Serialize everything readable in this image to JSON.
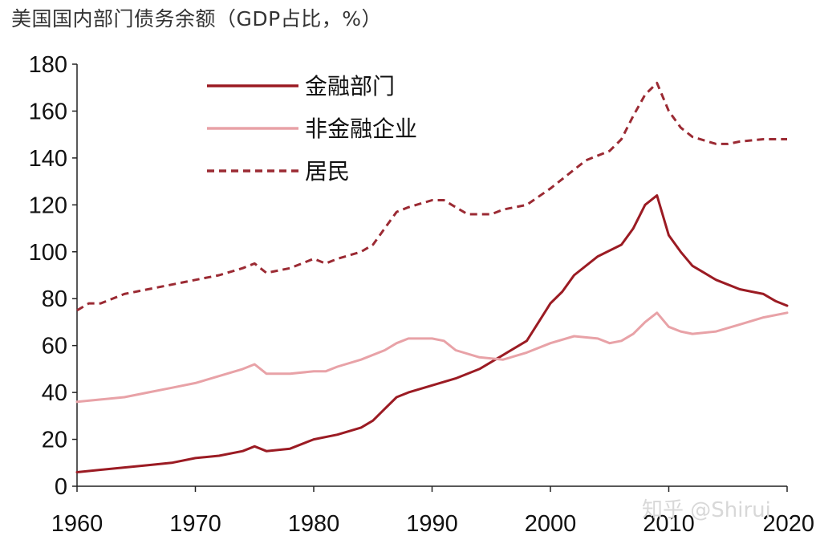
{
  "chart_data": {
    "type": "line",
    "title": "美国国内部门债务余额（GDP占比，%）",
    "xlabel": "",
    "ylabel": "",
    "xlim": [
      1960,
      2020
    ],
    "ylim": [
      0,
      180
    ],
    "x_ticks": [
      "1960",
      "1970",
      "1980",
      "1990",
      "2000",
      "2010",
      "2020"
    ],
    "y_ticks": [
      "0",
      "20",
      "40",
      "60",
      "80",
      "100",
      "120",
      "140",
      "160",
      "180"
    ],
    "grid": false,
    "legend_position": "top-left",
    "series": [
      {
        "name": "金融部门",
        "color": "#9b1b23",
        "style": "solid",
        "points": [
          [
            1960,
            6
          ],
          [
            1962,
            7
          ],
          [
            1964,
            8
          ],
          [
            1966,
            9
          ],
          [
            1968,
            10
          ],
          [
            1970,
            12
          ],
          [
            1972,
            13
          ],
          [
            1974,
            15
          ],
          [
            1975,
            17
          ],
          [
            1976,
            15
          ],
          [
            1978,
            16
          ],
          [
            1980,
            20
          ],
          [
            1982,
            22
          ],
          [
            1984,
            25
          ],
          [
            1985,
            28
          ],
          [
            1986,
            33
          ],
          [
            1987,
            38
          ],
          [
            1988,
            40
          ],
          [
            1990,
            43
          ],
          [
            1992,
            46
          ],
          [
            1994,
            50
          ],
          [
            1996,
            56
          ],
          [
            1998,
            62
          ],
          [
            1999,
            70
          ],
          [
            2000,
            78
          ],
          [
            2001,
            83
          ],
          [
            2002,
            90
          ],
          [
            2004,
            98
          ],
          [
            2006,
            103
          ],
          [
            2007,
            110
          ],
          [
            2008,
            120
          ],
          [
            2009,
            124
          ],
          [
            2010,
            107
          ],
          [
            2011,
            100
          ],
          [
            2012,
            94
          ],
          [
            2013,
            91
          ],
          [
            2014,
            88
          ],
          [
            2015,
            86
          ],
          [
            2016,
            84
          ],
          [
            2017,
            83
          ],
          [
            2018,
            82
          ],
          [
            2019,
            79
          ],
          [
            2020,
            77
          ]
        ]
      },
      {
        "name": "非金融企业",
        "color": "#e8a2a7",
        "style": "solid",
        "points": [
          [
            1960,
            36
          ],
          [
            1962,
            37
          ],
          [
            1964,
            38
          ],
          [
            1966,
            40
          ],
          [
            1968,
            42
          ],
          [
            1970,
            44
          ],
          [
            1972,
            47
          ],
          [
            1974,
            50
          ],
          [
            1975,
            52
          ],
          [
            1976,
            48
          ],
          [
            1978,
            48
          ],
          [
            1980,
            49
          ],
          [
            1981,
            49
          ],
          [
            1982,
            51
          ],
          [
            1984,
            54
          ],
          [
            1986,
            58
          ],
          [
            1987,
            61
          ],
          [
            1988,
            63
          ],
          [
            1990,
            63
          ],
          [
            1991,
            62
          ],
          [
            1992,
            58
          ],
          [
            1994,
            55
          ],
          [
            1996,
            54
          ],
          [
            1998,
            57
          ],
          [
            2000,
            61
          ],
          [
            2002,
            64
          ],
          [
            2004,
            63
          ],
          [
            2005,
            61
          ],
          [
            2006,
            62
          ],
          [
            2007,
            65
          ],
          [
            2008,
            70
          ],
          [
            2009,
            74
          ],
          [
            2010,
            68
          ],
          [
            2011,
            66
          ],
          [
            2012,
            65
          ],
          [
            2014,
            66
          ],
          [
            2016,
            69
          ],
          [
            2018,
            72
          ],
          [
            2020,
            74
          ]
        ]
      },
      {
        "name": "居民",
        "color": "#9b2a33",
        "style": "dashed",
        "points": [
          [
            1960,
            75
          ],
          [
            1961,
            78
          ],
          [
            1962,
            78
          ],
          [
            1964,
            82
          ],
          [
            1966,
            84
          ],
          [
            1968,
            86
          ],
          [
            1970,
            88
          ],
          [
            1972,
            90
          ],
          [
            1974,
            93
          ],
          [
            1975,
            95
          ],
          [
            1976,
            91
          ],
          [
            1978,
            93
          ],
          [
            1980,
            97
          ],
          [
            1981,
            95
          ],
          [
            1982,
            97
          ],
          [
            1984,
            100
          ],
          [
            1985,
            103
          ],
          [
            1986,
            110
          ],
          [
            1987,
            117
          ],
          [
            1988,
            119
          ],
          [
            1990,
            122
          ],
          [
            1991,
            122
          ],
          [
            1992,
            119
          ],
          [
            1993,
            116
          ],
          [
            1995,
            116
          ],
          [
            1996,
            118
          ],
          [
            1998,
            120
          ],
          [
            2000,
            127
          ],
          [
            2002,
            135
          ],
          [
            2003,
            139
          ],
          [
            2005,
            143
          ],
          [
            2006,
            148
          ],
          [
            2007,
            158
          ],
          [
            2008,
            167
          ],
          [
            2009,
            172
          ],
          [
            2010,
            160
          ],
          [
            2011,
            153
          ],
          [
            2012,
            149
          ],
          [
            2014,
            146
          ],
          [
            2015,
            146
          ],
          [
            2016,
            147
          ],
          [
            2018,
            148
          ],
          [
            2020,
            148
          ]
        ]
      }
    ]
  },
  "watermark": "知乎 @Shirui"
}
